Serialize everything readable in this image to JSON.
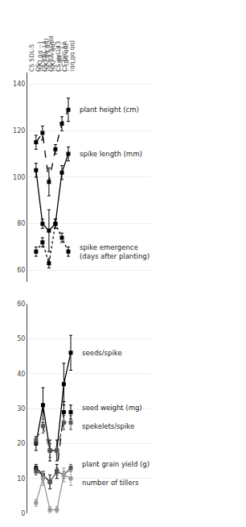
{
  "chart_data": [
    {
      "type": "line",
      "categories": [
        "CS 5DL-5\n(QQ ͟qq --)",
        "CS\n(QQ ͟qq qq)",
        "CS 5BL-14\n(QQ -- qq)",
        "CS 5A/5Ddd\n(-- ͟qq --)",
        "CS del143\n(-- ͟qq qq)",
        "CS-DIC 5A\n(qq ͟qq qq)"
      ],
      "ylim": [
        55,
        145
      ],
      "yticks": [
        60,
        80,
        100,
        120,
        140
      ],
      "grid": true,
      "marker": "square",
      "series": [
        {
          "name": "plant height (cm)",
          "color": "#000000",
          "line_style": "dashed",
          "values": [
            115,
            119,
            98,
            112,
            123,
            129
          ],
          "errors": [
            3,
            3,
            6,
            2,
            3,
            5
          ]
        },
        {
          "name": "spike length (mm)",
          "color": "#000000",
          "line_style": "solid",
          "values": [
            103,
            80,
            77,
            80,
            102,
            110
          ],
          "errors": [
            3,
            2,
            9,
            2,
            3,
            3
          ]
        },
        {
          "name": "spike emergence\n(days after planting)",
          "color": "#000000",
          "line_style": "dotted",
          "values": [
            68,
            72,
            63,
            80,
            74,
            68
          ],
          "errors": [
            2,
            2,
            2,
            2,
            2,
            2
          ]
        }
      ]
    },
    {
      "type": "line",
      "categories": [
        "CS 5DL-5\n(QQ ͟qq --)",
        "CS\n(QQ ͟qq qq)",
        "CS 5BL-14\n(QQ -- qq)",
        "CS 5A/5Ddd\n(-- ͟qq --)",
        "CS del143\n(-- ͟qq qq)",
        "CS-DIC 5A\n(qq ͟qq qq)"
      ],
      "tick_labels": "y",
      "ylim": [
        0,
        60
      ],
      "yticks": [
        0,
        10,
        20,
        30,
        40,
        50,
        60
      ],
      "grid": true,
      "marker": "square",
      "series": [
        {
          "name": "seeds/spike",
          "color": "#000000",
          "line_style": "solid",
          "values": [
            20,
            31,
            18,
            18,
            37,
            46
          ],
          "errors": [
            2,
            5,
            3,
            3,
            6,
            5
          ]
        },
        {
          "name": "seed weight (mg)",
          "color": "#000000",
          "line_style": "dashed",
          "values": [
            13,
            11,
            9,
            12,
            29,
            29
          ],
          "errors": [
            1,
            1,
            2,
            2,
            3,
            2
          ]
        },
        {
          "name": "spekelets/spike",
          "color": "#555555",
          "line_style": "dashed",
          "values": [
            21,
            25,
            18,
            18,
            26,
            26
          ],
          "errors": [
            1,
            2,
            2,
            1,
            2,
            2
          ]
        },
        {
          "name": "plant grain yield (g)",
          "color": "#555555",
          "line_style": "solid",
          "values": [
            12,
            11,
            9,
            12,
            11,
            13
          ],
          "errors": [
            1,
            1,
            2,
            1,
            1,
            1
          ]
        },
        {
          "name": "number of tillers",
          "color": "#999999",
          "line_style": "solid",
          "values": [
            3,
            10,
            1,
            1,
            11,
            10
          ],
          "errors": [
            1,
            2,
            1,
            1,
            2,
            2
          ]
        }
      ]
    }
  ]
}
